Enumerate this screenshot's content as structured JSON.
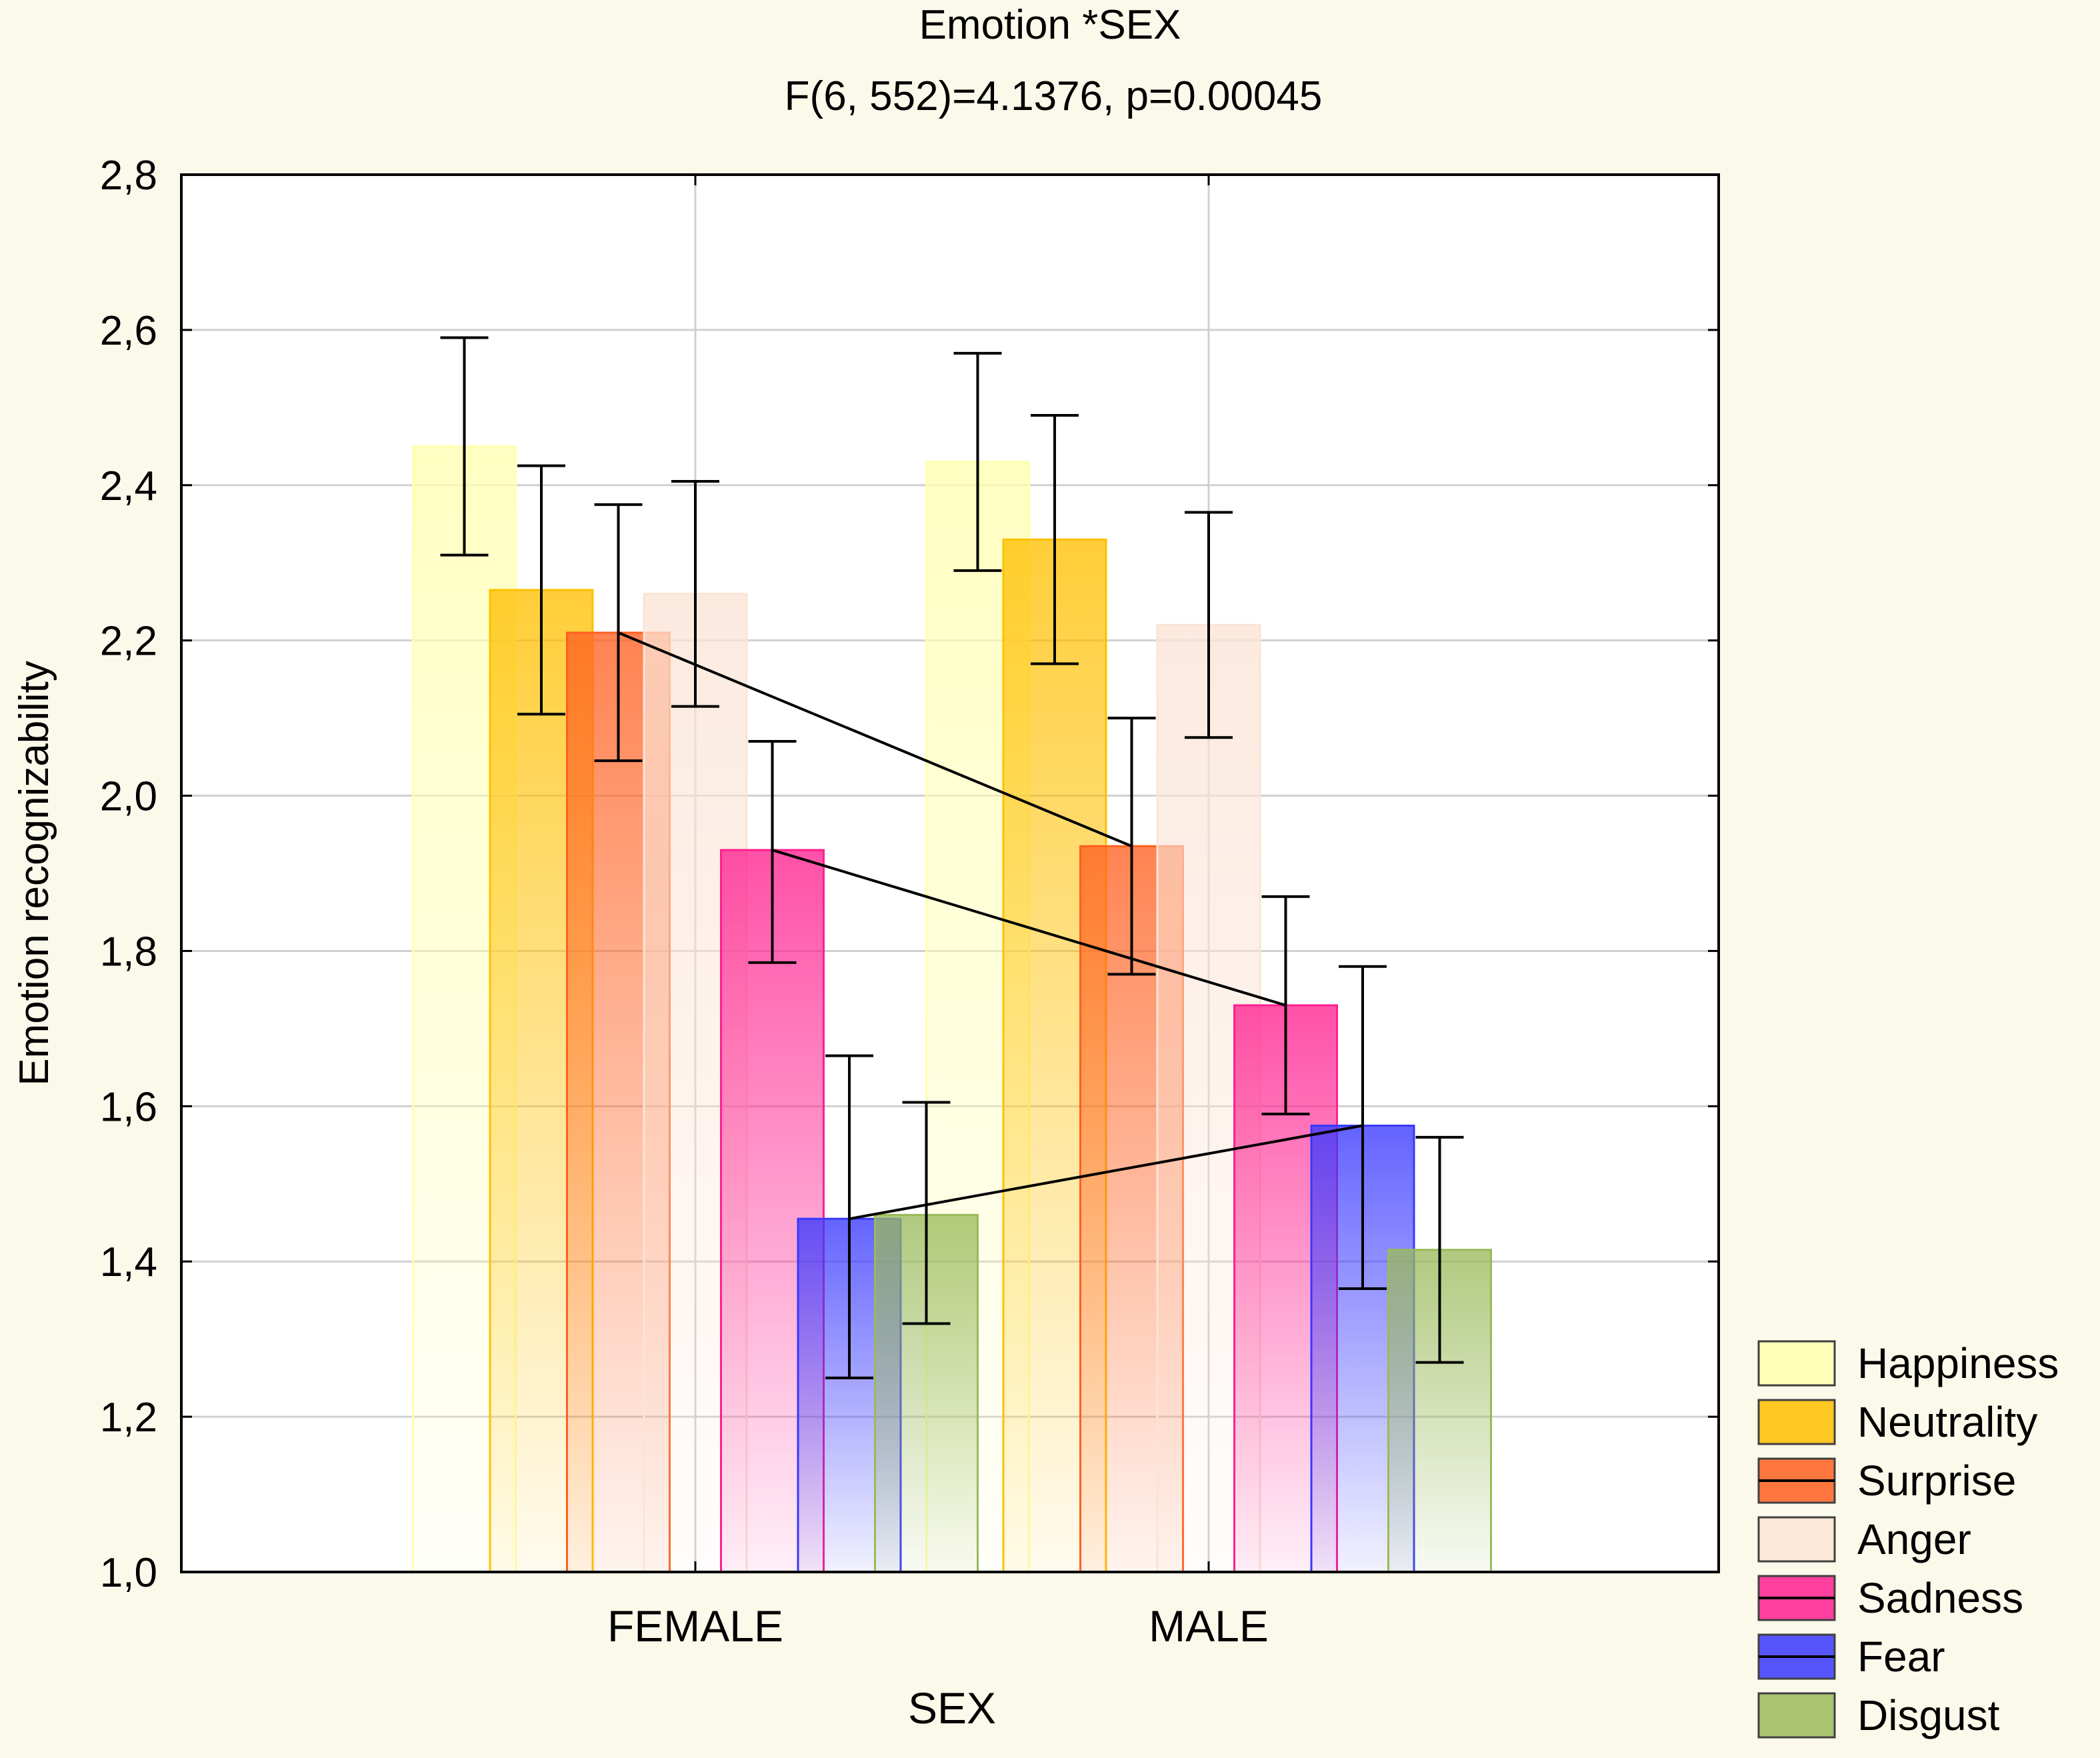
{
  "chart_data": {
    "type": "bar",
    "title": "Emotion *SEX",
    "subtitle": "F(6, 552)=4.1376, p=0.00045",
    "xlabel": "SEX",
    "ylabel": "Emotion recognizability",
    "categories": [
      "FEMALE",
      "MALE"
    ],
    "ylim": [
      1.0,
      2.8
    ],
    "yticks": [
      1.0,
      1.2,
      1.4,
      1.6,
      1.8,
      2.0,
      2.2,
      2.4,
      2.6,
      2.8
    ],
    "ytick_labels": [
      "1,0",
      "1,2",
      "1,4",
      "1,6",
      "1,8",
      "2,0",
      "2,2",
      "2,4",
      "2,6",
      "2,8"
    ],
    "grid": true,
    "legend_position": "bottom-right",
    "series": [
      {
        "name": "Happiness",
        "color": "#ffffb0",
        "values": [
          2.45,
          2.43
        ],
        "error_low": [
          2.31,
          2.29
        ],
        "error_high": [
          2.59,
          2.57
        ]
      },
      {
        "name": "Neutrality",
        "color": "#ffc000",
        "values": [
          2.265,
          2.33
        ],
        "error_low": [
          2.105,
          2.17
        ],
        "error_high": [
          2.425,
          2.49
        ]
      },
      {
        "name": "Surprise",
        "color": "#ff6020",
        "values": [
          2.21,
          1.935
        ],
        "error_low": [
          2.045,
          1.77
        ],
        "error_high": [
          2.375,
          2.1
        ]
      },
      {
        "name": "Anger",
        "color": "#fbe4d6",
        "values": [
          2.26,
          2.22
        ],
        "error_low": [
          2.115,
          2.075
        ],
        "error_high": [
          2.405,
          2.365
        ]
      },
      {
        "name": "Sadness",
        "color": "#ff2090",
        "values": [
          1.93,
          1.73
        ],
        "error_low": [
          1.785,
          1.59
        ],
        "error_high": [
          2.07,
          1.87
        ]
      },
      {
        "name": "Fear",
        "color": "#3838ff",
        "values": [
          1.455,
          1.575
        ],
        "error_low": [
          1.25,
          1.365
        ],
        "error_high": [
          1.665,
          1.78
        ]
      },
      {
        "name": "Disgust",
        "color": "#9aba5a",
        "values": [
          1.46,
          1.415
        ],
        "error_low": [
          1.32,
          1.27
        ],
        "error_high": [
          1.605,
          1.56
        ]
      }
    ],
    "connected_series": [
      "Surprise",
      "Sadness",
      "Fear"
    ]
  }
}
